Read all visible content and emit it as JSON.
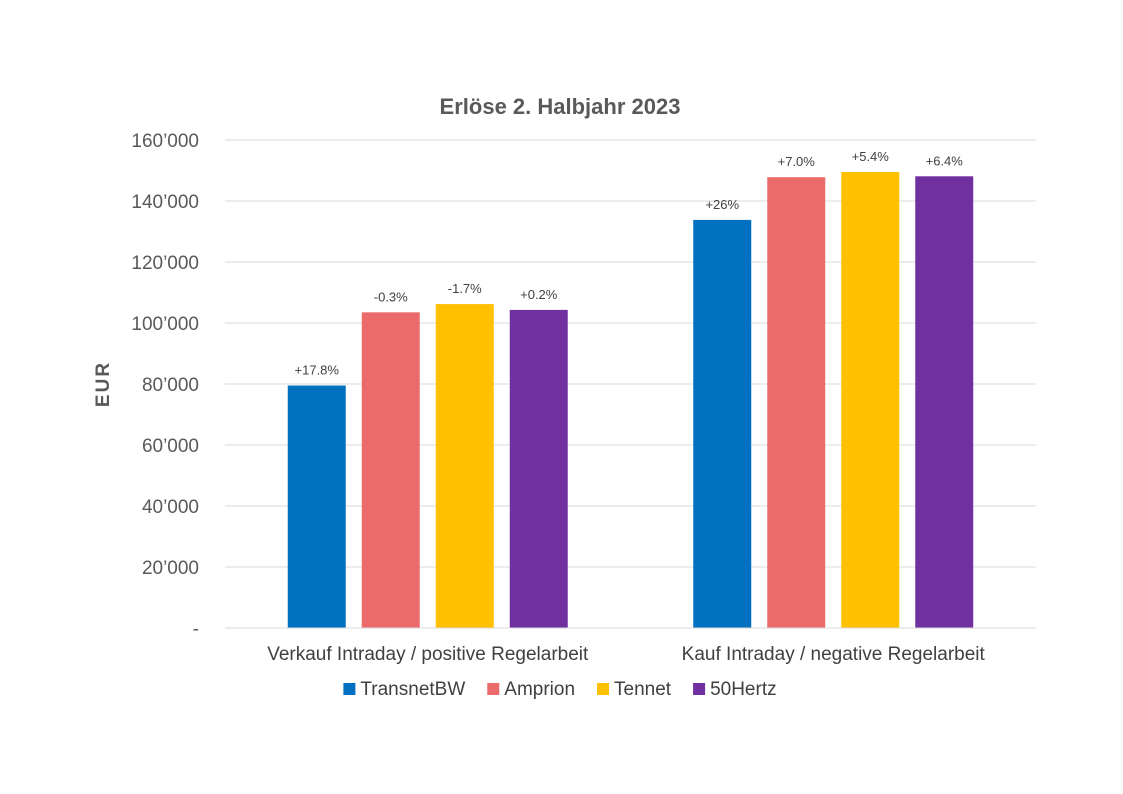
{
  "chart_data": {
    "type": "bar",
    "title": "Erlöse 2. Halbjahr 2023",
    "xlabel": "",
    "ylabel": "EUR",
    "ylim": [
      0,
      160000
    ],
    "yticks": [
      {
        "value": 0,
        "label": "-"
      },
      {
        "value": 20000,
        "label": "20’000"
      },
      {
        "value": 40000,
        "label": "40’000"
      },
      {
        "value": 60000,
        "label": "60’000"
      },
      {
        "value": 80000,
        "label": "80’000"
      },
      {
        "value": 100000,
        "label": "100’000"
      },
      {
        "value": 120000,
        "label": "120’000"
      },
      {
        "value": 140000,
        "label": "140’000"
      },
      {
        "value": 160000,
        "label": "160’000"
      }
    ],
    "grid": true,
    "legend_position": "bottom",
    "categories": [
      "Verkauf Intraday / positive Regelarbeit",
      "Kauf Intraday / negative Regelarbeit"
    ],
    "series": [
      {
        "name": "TransnetBW",
        "color": "#0070C0",
        "values": [
          79500,
          133800
        ],
        "labels": [
          "+17.8%",
          "+26%"
        ]
      },
      {
        "name": "Amprion",
        "color": "#EB6B6B",
        "values": [
          103500,
          147800
        ],
        "labels": [
          "-0.3%",
          "+7.0%"
        ]
      },
      {
        "name": "Tennet",
        "color": "#FFC000",
        "values": [
          106200,
          149500
        ],
        "labels": [
          "-1.7%",
          "+5.4%"
        ]
      },
      {
        "name": "50Hertz",
        "color": "#7030A0",
        "values": [
          104300,
          148100
        ],
        "labels": [
          "+0.2%",
          "+6.4%"
        ]
      }
    ]
  }
}
